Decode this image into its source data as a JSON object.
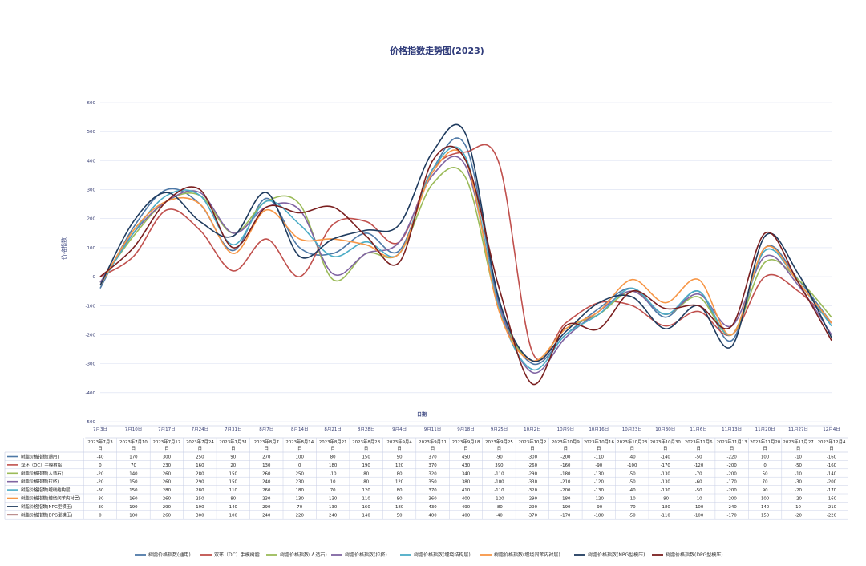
{
  "chart_data": {
    "type": "line",
    "title": "价格指数走势图(2023)",
    "xlabel": "日期",
    "ylabel": "价格指数",
    "ylim": [
      -500,
      600
    ],
    "yticks": [
      -500,
      -400,
      -300,
      -200,
      -100,
      0,
      100,
      200,
      300,
      400,
      500,
      600
    ],
    "grid": "horizontal",
    "legend": "bottom",
    "axis_tick_labels": [
      "7月3日",
      "7月10日",
      "7月17日",
      "7月24日",
      "7月31日",
      "8月7日",
      "8月14日",
      "8月21日",
      "8月28日",
      "9月4日",
      "9月11日",
      "9月18日",
      "9月25日",
      "10月2日",
      "10月9日",
      "10月16日",
      "10月23日",
      "10月30日",
      "11月6日",
      "11月13日",
      "11月20日",
      "11月27日",
      "12月4日"
    ],
    "categories": [
      "2023年7月3日",
      "2023年7月10日",
      "2023年7月17日",
      "2023年7月24日",
      "2023年7月31日",
      "2023年8月7日",
      "2023年8月14日",
      "2023年8月21日",
      "2023年8月28日",
      "2023年9月4日",
      "2023年9月11日",
      "2023年9月18日",
      "2023年9月25日",
      "2023年10月2日",
      "2023年10月9日",
      "2023年10月16日",
      "2023年10月23日",
      "2023年10月30日",
      "2023年11月6日",
      "2023年11月13日",
      "2023年11月20日",
      "2023年11月27日",
      "2023年12月4日"
    ],
    "series": [
      {
        "name": "树脂价格指数(通用)",
        "color": "#4e79a7",
        "values": [
          -40,
          170,
          300,
          250,
          90,
          270,
          100,
          80,
          150,
          90,
          370,
          450,
          -90,
          -300,
          -200,
          -110,
          -40,
          -140,
          -50,
          -220,
          100,
          -10,
          -160
        ]
      },
      {
        "name": "双环（DC）手模树脂",
        "color": "#c0504d",
        "values": [
          0,
          70,
          230,
          160,
          20,
          130,
          0,
          180,
          190,
          120,
          370,
          430,
          390,
          -260,
          -160,
          -90,
          -100,
          -170,
          -120,
          -200,
          0,
          -50,
          -160
        ]
      },
      {
        "name": "树脂价格指数(人造石)",
        "color": "#9bbb59",
        "values": [
          -20,
          140,
          260,
          280,
          150,
          260,
          250,
          -10,
          80,
          80,
          320,
          340,
          -110,
          -290,
          -180,
          -130,
          -50,
          -130,
          -70,
          -200,
          50,
          -10,
          -140
        ]
      },
      {
        "name": "树脂价格指数(拉挤)",
        "color": "#8064a2",
        "values": [
          -20,
          150,
          260,
          290,
          150,
          240,
          230,
          10,
          80,
          120,
          350,
          380,
          -100,
          -330,
          -210,
          -120,
          -50,
          -130,
          -60,
          -170,
          70,
          -30,
          -200
        ]
      },
      {
        "name": "树脂价格指数(缠绕结构层)",
        "color": "#4bacc6",
        "values": [
          -30,
          150,
          280,
          280,
          110,
          260,
          180,
          70,
          120,
          80,
          370,
          410,
          -110,
          -320,
          -200,
          -130,
          -40,
          -130,
          -50,
          -200,
          90,
          -20,
          -170
        ]
      },
      {
        "name": "树脂价格指数(缠绕间苯内衬层)",
        "color": "#f79646",
        "values": [
          -30,
          160,
          260,
          250,
          80,
          230,
          130,
          130,
          110,
          80,
          360,
          400,
          -120,
          -290,
          -180,
          -120,
          -10,
          -90,
          -10,
          -200,
          100,
          -20,
          -160
        ]
      },
      {
        "name": "树脂价格指数(NPG型模压)",
        "color": "#1f3b5e",
        "values": [
          -30,
          190,
          290,
          190,
          140,
          290,
          70,
          130,
          160,
          180,
          430,
          490,
          -80,
          -290,
          -190,
          -90,
          -70,
          -180,
          -100,
          -240,
          140,
          10,
          -210
        ]
      },
      {
        "name": "树脂价格指数(DPG型模压)",
        "color": "#7a1f1f",
        "values": [
          0,
          100,
          260,
          300,
          100,
          240,
          220,
          240,
          140,
          50,
          400,
          400,
          -40,
          -370,
          -170,
          -180,
          -50,
          -110,
          -100,
          -170,
          150,
          -20,
          -220
        ]
      }
    ]
  }
}
